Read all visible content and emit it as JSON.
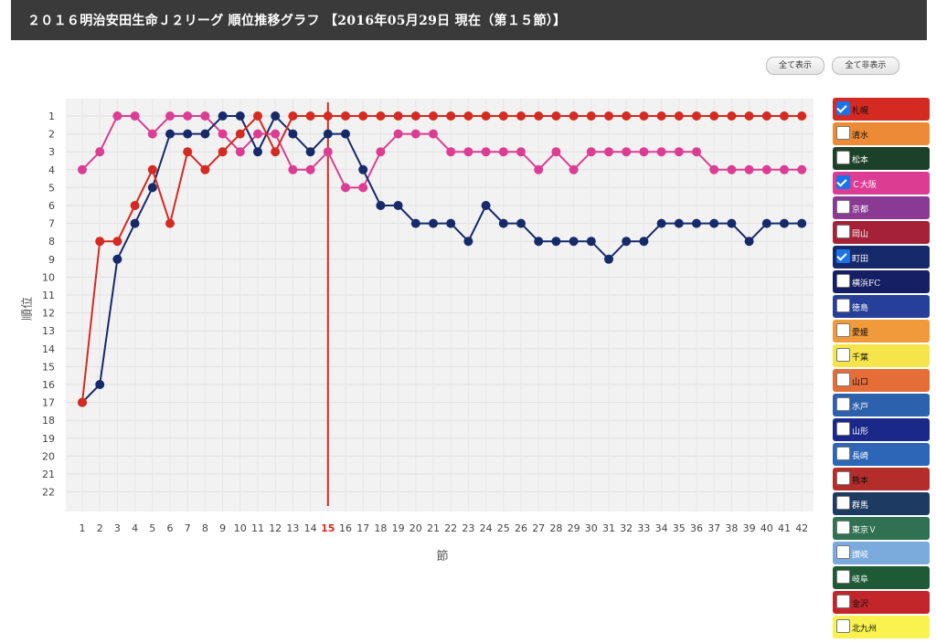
{
  "header": {
    "title": "２０１６明治安田生命Ｊ２リーグ 順位推移グラフ 【2016年05月29日 現在（第１５節）】"
  },
  "controls": {
    "show_all": "全て表示",
    "hide_all": "全て非表示"
  },
  "legend": [
    {
      "name": "札幌",
      "color": "#d42a22",
      "checked": true,
      "text_color": "#111"
    },
    {
      "name": "清水",
      "color": "#ec8a35",
      "checked": false,
      "text_color": "#111"
    },
    {
      "name": "松本",
      "color": "#1b4228",
      "checked": false,
      "text_color": "#fff"
    },
    {
      "name": "Ｃ大阪",
      "color": "#dc3d93",
      "checked": true,
      "text_color": "#fff"
    },
    {
      "name": "京都",
      "color": "#8a3a93",
      "checked": false,
      "text_color": "#fff"
    },
    {
      "name": "岡山",
      "color": "#a52137",
      "checked": false,
      "text_color": "#fff"
    },
    {
      "name": "町田",
      "color": "#162a6b",
      "checked": true,
      "text_color": "#fff"
    },
    {
      "name": "横浜FC",
      "color": "#151f63",
      "checked": false,
      "text_color": "#fff"
    },
    {
      "name": "徳島",
      "color": "#26409a",
      "checked": false,
      "text_color": "#fff"
    },
    {
      "name": "愛媛",
      "color": "#f09a3c",
      "checked": false,
      "text_color": "#111"
    },
    {
      "name": "千葉",
      "color": "#f6e54a",
      "checked": false,
      "text_color": "#111"
    },
    {
      "name": "山口",
      "color": "#e46d38",
      "checked": false,
      "text_color": "#111"
    },
    {
      "name": "水戸",
      "color": "#2c62ad",
      "checked": false,
      "text_color": "#fff"
    },
    {
      "name": "山形",
      "color": "#1a2889",
      "checked": false,
      "text_color": "#fff"
    },
    {
      "name": "長崎",
      "color": "#2d66b7",
      "checked": false,
      "text_color": "#fff"
    },
    {
      "name": "熊本",
      "color": "#b32d2b",
      "checked": false,
      "text_color": "#111"
    },
    {
      "name": "群馬",
      "color": "#1d3a63",
      "checked": false,
      "text_color": "#fff"
    },
    {
      "name": "東京Ｖ",
      "color": "#2f7150",
      "checked": false,
      "text_color": "#fff"
    },
    {
      "name": "讃岐",
      "color": "#7baadc",
      "checked": false,
      "text_color": "#fff"
    },
    {
      "name": "岐阜",
      "color": "#1e5a35",
      "checked": false,
      "text_color": "#fff"
    },
    {
      "name": "金沢",
      "color": "#c3262a",
      "checked": false,
      "text_color": "#111"
    },
    {
      "name": "北九州",
      "color": "#f9f24f",
      "checked": false,
      "text_color": "#111"
    }
  ],
  "chart_data": {
    "type": "line",
    "xlabel": "節",
    "ylabel": "順位",
    "x": [
      1,
      2,
      3,
      4,
      5,
      6,
      7,
      8,
      9,
      10,
      11,
      12,
      13,
      14,
      15,
      16,
      17,
      18,
      19,
      20,
      21,
      22,
      23,
      24,
      25,
      26,
      27,
      28,
      29,
      30,
      31,
      32,
      33,
      34,
      35,
      36,
      37,
      38,
      39,
      40,
      41,
      42
    ],
    "ylim": [
      1,
      22
    ],
    "y_inverted": true,
    "current_round": 15,
    "current_round_color": "#d42a22",
    "grid": true,
    "series": [
      {
        "name": "Ｃ大阪",
        "color": "#dc3d93",
        "values": [
          4,
          3,
          1,
          1,
          2,
          1,
          1,
          1,
          2,
          3,
          2,
          2,
          4,
          4,
          3,
          5,
          5,
          3,
          2,
          2,
          2,
          3,
          3,
          3,
          3,
          3,
          4,
          3,
          4,
          3,
          3,
          3,
          3,
          3,
          3,
          3,
          4,
          4,
          4,
          4,
          4,
          4
        ]
      },
      {
        "name": "町田",
        "color": "#162a6b",
        "values": [
          17,
          16,
          9,
          7,
          5,
          2,
          2,
          2,
          1,
          1,
          3,
          1,
          2,
          3,
          2,
          2,
          4,
          6,
          6,
          7,
          7,
          7,
          8,
          6,
          7,
          7,
          8,
          8,
          8,
          8,
          9,
          8,
          8,
          7,
          7,
          7,
          7,
          7,
          8,
          7,
          7,
          7
        ]
      },
      {
        "name": "札幌",
        "color": "#d42a22",
        "values": [
          17,
          8,
          8,
          6,
          4,
          7,
          3,
          4,
          3,
          2,
          1,
          3,
          1,
          1,
          1,
          1,
          1,
          1,
          1,
          1,
          1,
          1,
          1,
          1,
          1,
          1,
          1,
          1,
          1,
          1,
          1,
          1,
          1,
          1,
          1,
          1,
          1,
          1,
          1,
          1,
          1,
          1
        ]
      }
    ]
  }
}
